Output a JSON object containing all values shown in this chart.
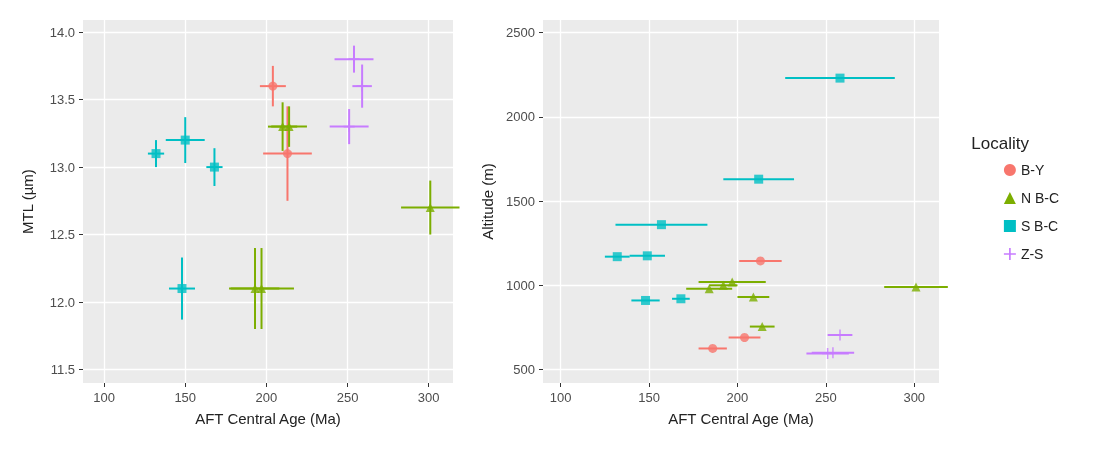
{
  "chart_data": [
    {
      "type": "scatter",
      "xlabel": "AFT Central Age (Ma)",
      "ylabel": "MTL (µm)",
      "xlim": [
        87,
        315
      ],
      "ylim": [
        11.4,
        14.09
      ],
      "xticks": [
        100,
        150,
        200,
        250,
        300
      ],
      "yticks": [
        11.5,
        {
          "value": 12,
          "label": "12.0"
        },
        12.5,
        {
          "value": 13,
          "label": "13.0"
        },
        13.5,
        {
          "value": 14,
          "label": "14.0"
        }
      ],
      "grid": true,
      "legend": false,
      "series": [
        {
          "color": "#f8766d",
          "marker": "circle",
          "x": [
            204,
            213
          ],
          "values": [
            13.6,
            13.1
          ],
          "xerrors": [
            8,
            15
          ],
          "errors": [
            0.15,
            0.35
          ]
        },
        {
          "color": "#7cae00",
          "marker": "triangle",
          "x": [
            210,
            214,
            301,
            193,
            197
          ],
          "values": [
            13.3,
            13.3,
            12.7,
            12.1,
            12.1
          ],
          "xerrors": [
            9,
            11,
            18,
            15,
            20
          ],
          "errors": [
            0.18,
            0.15,
            0.2,
            0.3,
            0.3
          ]
        },
        {
          "color": "#00bfc4",
          "marker": "square",
          "x": [
            132,
            150,
            168,
            148
          ],
          "values": [
            13.1,
            13.2,
            13.0,
            12.1
          ],
          "xerrors": [
            5,
            12,
            5,
            8
          ],
          "errors": [
            0.1,
            0.17,
            0.14,
            0.23
          ]
        },
        {
          "color": "#c77cff",
          "marker": "cross",
          "x": [
            254,
            259,
            251
          ],
          "values": [
            13.8,
            13.6,
            13.3
          ],
          "xerrors": [
            12,
            6,
            12
          ],
          "errors": [
            0.1,
            0.16,
            0.13
          ]
        }
      ]
    },
    {
      "type": "scatter",
      "xlabel": "AFT Central Age (Ma)",
      "ylabel": "Altitude (m)",
      "legend_title": "Locality",
      "xlim": [
        90,
        314
      ],
      "ylim": [
        420,
        2575
      ],
      "xticks": [
        100,
        150,
        200,
        250,
        300
      ],
      "yticks": [
        500,
        1000,
        1500,
        2000,
        2500
      ],
      "grid": true,
      "legend": "right",
      "series": [
        {
          "name": "B-Y",
          "color": "#f8766d",
          "marker": "circle",
          "x": [
            213,
            204,
            186
          ],
          "values": [
            1145,
            690,
            625
          ],
          "xerrors": [
            12,
            9,
            8
          ]
        },
        {
          "name": "N B-C",
          "color": "#7cae00",
          "marker": "triangle",
          "x": [
            197,
            192,
            184,
            209,
            214,
            301
          ],
          "values": [
            1020,
            1000,
            980,
            930,
            755,
            990
          ],
          "xerrors": [
            19,
            8,
            13,
            9,
            7,
            18
          ]
        },
        {
          "name": "S B-C",
          "color": "#00bfc4",
          "marker": "square",
          "x": [
            258,
            212,
            157,
            132,
            149,
            148,
            168
          ],
          "values": [
            2230,
            1630,
            1360,
            1170,
            1175,
            910,
            920
          ],
          "xerrors": [
            31,
            20,
            26,
            7,
            10,
            8,
            5
          ]
        },
        {
          "name": "Z-S",
          "color": "#c77cff",
          "marker": "cross",
          "x": [
            258,
            251,
            254
          ],
          "values": [
            705,
            595,
            600
          ],
          "xerrors": [
            7,
            12,
            12
          ]
        }
      ]
    }
  ]
}
